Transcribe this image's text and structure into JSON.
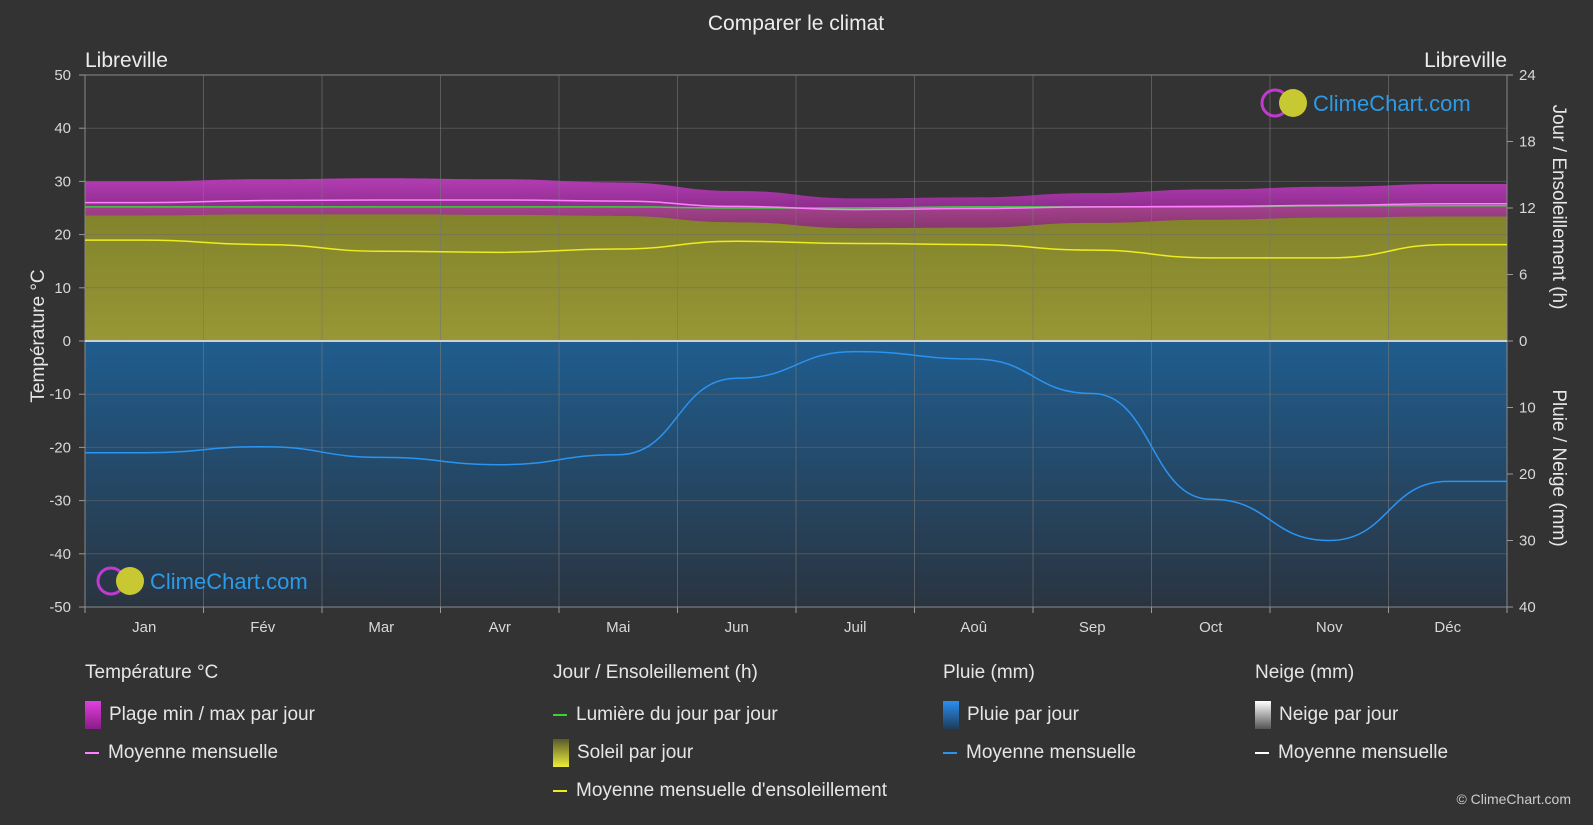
{
  "chart_data": {
    "type": "area",
    "title": "Comparer le climat",
    "location_left": "Libreville",
    "location_right": "Libreville",
    "months": [
      "Jan",
      "Fév",
      "Mar",
      "Avr",
      "Mai",
      "Jun",
      "Juil",
      "Aoû",
      "Sep",
      "Oct",
      "Nov",
      "Déc"
    ],
    "y_left": {
      "label": "Température °C",
      "range": [
        -50,
        50
      ],
      "ticks": [
        50,
        40,
        30,
        20,
        10,
        0,
        -10,
        -20,
        -30,
        -40,
        -50
      ]
    },
    "y_right_top": {
      "label": "Jour / Ensoleillement (h)",
      "range": [
        0,
        24
      ],
      "ticks": [
        24,
        18,
        12,
        6,
        0
      ]
    },
    "y_right_bottom": {
      "label": "Pluie / Neige (mm)",
      "range": [
        0,
        40
      ],
      "ticks": [
        0,
        10,
        20,
        30,
        40
      ]
    },
    "series": [
      {
        "name": "Plage min / max par jour",
        "unit": "°C",
        "min": [
          23.6,
          23.8,
          23.8,
          23.7,
          23.5,
          22.3,
          21.2,
          21.3,
          22.2,
          22.8,
          23.2,
          23.4
        ],
        "max": [
          30.0,
          30.4,
          30.6,
          30.4,
          29.8,
          28.2,
          26.8,
          27.0,
          27.8,
          28.5,
          29.0,
          29.5
        ]
      },
      {
        "name": "Moyenne mensuelle",
        "key": "temp_mean",
        "unit": "°C",
        "values": [
          26.0,
          26.4,
          26.5,
          26.5,
          26.3,
          25.3,
          24.7,
          24.9,
          25.2,
          25.3,
          25.5,
          25.8
        ]
      },
      {
        "name": "Lumière du jour par jour",
        "unit": "h",
        "values": [
          12.1,
          12.1,
          12.1,
          12.1,
          12.1,
          12.0,
          12.0,
          12.1,
          12.1,
          12.1,
          12.2,
          12.2
        ]
      },
      {
        "name": "Moyenne mensuelle d'ensoleillement",
        "unit": "h",
        "values": [
          9.1,
          8.7,
          8.1,
          8.0,
          8.3,
          9.0,
          8.8,
          8.7,
          8.2,
          7.5,
          7.5,
          8.7
        ]
      },
      {
        "name": "Moyenne mensuelle",
        "key": "rain_mean",
        "unit": "mm",
        "values": [
          16.8,
          15.9,
          17.5,
          18.6,
          17.1,
          5.6,
          1.6,
          2.7,
          7.9,
          23.8,
          30.0,
          21.1
        ]
      }
    ],
    "legend": {
      "temperature": {
        "title": "Température °C",
        "range_label": "Plage min / max par jour",
        "mean_label": "Moyenne mensuelle"
      },
      "sun": {
        "title": "Jour / Ensoleillement (h)",
        "daylight_label": "Lumière du jour par jour",
        "sun_label": "Soleil par jour",
        "sun_mean_label": "Moyenne mensuelle d'ensoleillement"
      },
      "rain": {
        "title": "Pluie (mm)",
        "rain_label": "Pluie par jour",
        "mean_label": "Moyenne mensuelle"
      },
      "snow": {
        "title": "Neige (mm)",
        "snow_label": "Neige par jour",
        "mean_label": "Moyenne mensuelle"
      }
    },
    "grid": true,
    "colors": {
      "temp_range": "#d21fc9",
      "temp_mean": "#ff80ff",
      "daylight": "#39d339",
      "sun": "#b8b830",
      "sun_mean": "#eded1f",
      "rain": "#1e73b4",
      "rain_mean": "#2b93f0",
      "snow": "#ffffff"
    }
  },
  "watermark": "ClimeChart.com",
  "copyright": "© ClimeChart.com"
}
